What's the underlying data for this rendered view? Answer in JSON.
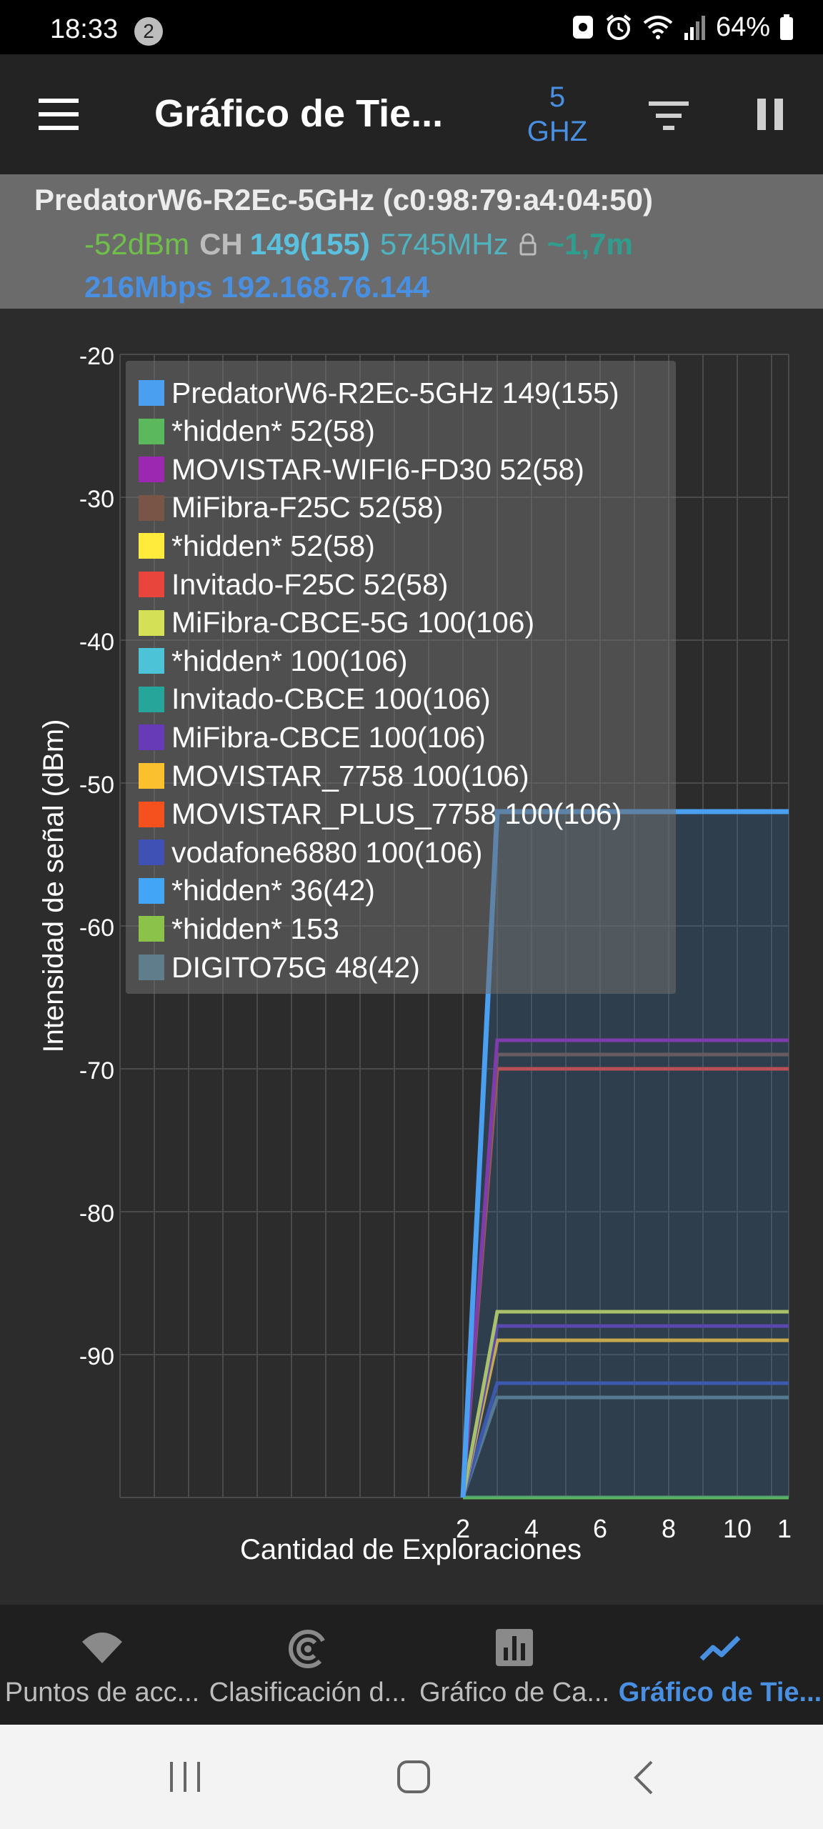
{
  "status_bar": {
    "time": "18:33",
    "notification_count": "2",
    "battery": "64%"
  },
  "toolbar": {
    "title": "Gráfico de Tie...",
    "band_value": "5",
    "band_unit": "GHZ"
  },
  "connection": {
    "ssid_mac": "PredatorW6-R2Ec-5GHz (c0:98:79:a4:04:50)",
    "signal": "-52dBm",
    "ch_label": "CH",
    "channel": "149(155)",
    "frequency": "5745MHz",
    "distance": "~1,7m",
    "speed_ip": "216Mbps 192.168.76.144"
  },
  "chart_data": {
    "type": "line",
    "ylabel": "Intensidad de señal (dBm)",
    "xlabel": "Cantidad de Exploraciones",
    "y_ticks": [
      "-20",
      "-30",
      "-40",
      "-50",
      "-60",
      "-70",
      "-80",
      "-90"
    ],
    "x_ticks": [
      "2",
      "4",
      "6",
      "8",
      "10",
      "1"
    ],
    "ylim": [
      -100,
      -20
    ],
    "xlim": [
      -8,
      11.5
    ],
    "grid": true,
    "legend_position": "top",
    "x": [
      2,
      3,
      11.5
    ],
    "series": [
      {
        "name": "PredatorW6-R2Ec-5GHz 149(155)",
        "color": "#4a9ff0",
        "values": [
          -100,
          -52,
          -52
        ],
        "fill": true
      },
      {
        "name": "*hidden* 52(58)",
        "color": "#5cb85c",
        "values": [
          -100,
          -100,
          -100
        ]
      },
      {
        "name": "MOVISTAR-WIFI6-FD30 52(58)",
        "color": "#9c27b0",
        "values": [
          -100,
          -68,
          -68
        ]
      },
      {
        "name": "MiFibra-F25C 52(58)",
        "color": "#795548",
        "values": [
          -100,
          -69,
          -69
        ]
      },
      {
        "name": "*hidden* 52(58)",
        "color": "#ffeb3b",
        "values": [
          -100,
          -100,
          -100
        ]
      },
      {
        "name": "Invitado-F25C 52(58)",
        "color": "#e8453c",
        "values": [
          -100,
          -70,
          -70
        ]
      },
      {
        "name": "MiFibra-CBCE-5G 100(106)",
        "color": "#d4e157",
        "values": [
          -100,
          -87,
          -87
        ]
      },
      {
        "name": "*hidden* 100(106)",
        "color": "#4dc3d8",
        "values": [
          -100,
          -100,
          -100
        ]
      },
      {
        "name": "Invitado-CBCE 100(106)",
        "color": "#26a69a",
        "values": [
          -100,
          -100,
          -100
        ]
      },
      {
        "name": "MiFibra-CBCE 100(106)",
        "color": "#673ab7",
        "values": [
          -100,
          -88,
          -88
        ]
      },
      {
        "name": "MOVISTAR_7758 100(106)",
        "color": "#fbc02d",
        "values": [
          -100,
          -89,
          -89
        ]
      },
      {
        "name": "MOVISTAR_PLUS_7758 100(106)",
        "color": "#f4511e",
        "values": [
          -100,
          -89,
          -89
        ]
      },
      {
        "name": "vodafone6880 100(106)",
        "color": "#3f51b5",
        "values": [
          -100,
          -92,
          -92
        ]
      },
      {
        "name": "*hidden* 36(42)",
        "color": "#42a5f5",
        "values": [
          -100,
          -100,
          -100
        ]
      },
      {
        "name": "*hidden* 153",
        "color": "#8bc34a",
        "values": [
          -100,
          -100,
          -100
        ]
      },
      {
        "name": "DIGITO75G 48(42)",
        "color": "#607d8b",
        "values": [
          -100,
          -93,
          -93
        ]
      }
    ]
  },
  "bottom_nav": [
    {
      "label": "Puntos de acc...",
      "icon": "wifi-icon",
      "active": false
    },
    {
      "label": "Clasificación d...",
      "icon": "signal-broadcast-icon",
      "active": false
    },
    {
      "label": "Gráfico de Ca...",
      "icon": "bar-chart-icon",
      "active": false
    },
    {
      "label": "Gráfico de Tie...",
      "icon": "line-chart-icon",
      "active": true
    }
  ]
}
